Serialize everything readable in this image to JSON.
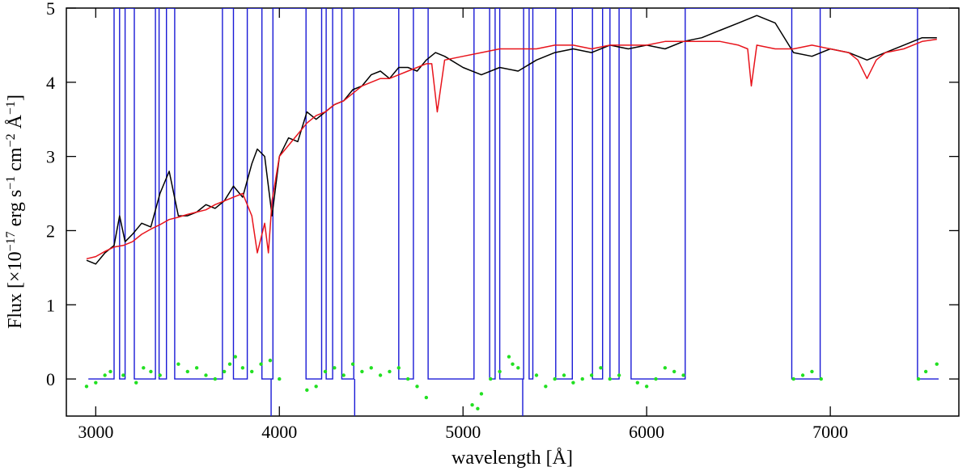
{
  "chart_data": {
    "type": "line",
    "title": "",
    "xlabel": "wavelength [Å]",
    "ylabel": {
      "prefix": "Flux [×10",
      "exp1": "−17",
      "mid1": " erg s",
      "exp2": "−1",
      "mid2": " cm",
      "exp3": "−2",
      "mid3": " Å",
      "exp4": "−1",
      "suffix": "]"
    },
    "xlim": [
      2840,
      7700
    ],
    "ylim": [
      -0.5,
      5
    ],
    "xticks": [
      3000,
      4000,
      5000,
      6000,
      7000
    ],
    "yticks": [
      0,
      1,
      2,
      3,
      4,
      5
    ],
    "grid": false,
    "legend": "none",
    "colors": {
      "observed": "#000000",
      "model": "#e8141c",
      "mask": "#1a1ad6",
      "residuals": "#22e022"
    },
    "series": [
      {
        "key": "observed",
        "x": [
          2950,
          3000,
          3050,
          3100,
          3130,
          3160,
          3200,
          3250,
          3300,
          3350,
          3400,
          3450,
          3500,
          3550,
          3600,
          3650,
          3700,
          3750,
          3800,
          3850,
          3880,
          3920,
          3960,
          4000,
          4050,
          4100,
          4150,
          4200,
          4250,
          4300,
          4350,
          4400,
          4450,
          4500,
          4550,
          4600,
          4650,
          4700,
          4750,
          4800,
          4850,
          4900,
          5000,
          5100,
          5200,
          5300,
          5400,
          5500,
          5600,
          5700,
          5800,
          5900,
          6000,
          6100,
          6200,
          6300,
          6400,
          6500,
          6600,
          6700,
          6800,
          6900,
          7000,
          7100,
          7200,
          7300,
          7400,
          7500,
          7580
        ],
        "y": [
          1.6,
          1.55,
          1.7,
          1.8,
          2.2,
          1.85,
          1.95,
          2.1,
          2.05,
          2.5,
          2.8,
          2.2,
          2.2,
          2.25,
          2.35,
          2.3,
          2.4,
          2.6,
          2.45,
          2.9,
          3.1,
          3.0,
          2.2,
          3.0,
          3.25,
          3.2,
          3.6,
          3.5,
          3.6,
          3.7,
          3.75,
          3.9,
          3.95,
          4.1,
          4.15,
          4.05,
          4.2,
          4.2,
          4.15,
          4.3,
          4.4,
          4.35,
          4.2,
          4.1,
          4.2,
          4.15,
          4.3,
          4.4,
          4.45,
          4.4,
          4.5,
          4.45,
          4.5,
          4.45,
          4.55,
          4.6,
          4.7,
          4.8,
          4.9,
          4.8,
          4.4,
          4.35,
          4.45,
          4.4,
          4.3,
          4.4,
          4.5,
          4.6,
          4.6
        ]
      },
      {
        "key": "model",
        "x": [
          2950,
          3000,
          3050,
          3100,
          3150,
          3200,
          3250,
          3300,
          3350,
          3400,
          3450,
          3500,
          3550,
          3600,
          3650,
          3700,
          3750,
          3800,
          3850,
          3880,
          3920,
          3940,
          3960,
          4000,
          4050,
          4100,
          4150,
          4200,
          4250,
          4300,
          4350,
          4400,
          4450,
          4500,
          4550,
          4600,
          4650,
          4700,
          4750,
          4800,
          4830,
          4860,
          4900,
          5000,
          5100,
          5200,
          5300,
          5400,
          5500,
          5600,
          5700,
          5800,
          5900,
          6000,
          6100,
          6200,
          6300,
          6400,
          6500,
          6550,
          6570,
          6600,
          6700,
          6800,
          6900,
          7000,
          7100,
          7150,
          7200,
          7250,
          7300,
          7400,
          7500,
          7580
        ],
        "y": [
          1.62,
          1.65,
          1.72,
          1.78,
          1.8,
          1.85,
          1.95,
          2.02,
          2.08,
          2.15,
          2.18,
          2.22,
          2.25,
          2.28,
          2.35,
          2.4,
          2.45,
          2.5,
          2.2,
          1.7,
          2.1,
          1.7,
          2.4,
          3.0,
          3.15,
          3.3,
          3.45,
          3.55,
          3.6,
          3.7,
          3.75,
          3.85,
          3.95,
          4.0,
          4.05,
          4.05,
          4.1,
          4.15,
          4.2,
          4.25,
          4.25,
          3.6,
          4.3,
          4.35,
          4.4,
          4.45,
          4.45,
          4.45,
          4.5,
          4.5,
          4.45,
          4.5,
          4.5,
          4.5,
          4.55,
          4.55,
          4.55,
          4.55,
          4.5,
          4.45,
          3.95,
          4.5,
          4.45,
          4.45,
          4.5,
          4.45,
          4.4,
          4.3,
          4.05,
          4.3,
          4.4,
          4.45,
          4.55,
          4.58
        ]
      }
    ],
    "mask": {
      "key": "mask",
      "intervals": [
        [
          3100,
          3130
        ],
        [
          3160,
          3210
        ],
        [
          3325,
          3345
        ],
        [
          3385,
          3430
        ],
        [
          3690,
          3750
        ],
        [
          3825,
          3905
        ],
        [
          3965,
          4145
        ],
        [
          4230,
          4255
        ],
        [
          4290,
          4340
        ],
        [
          4405,
          4650
        ],
        [
          4730,
          4810
        ],
        [
          5060,
          5145
        ],
        [
          5175,
          5200
        ],
        [
          5330,
          5360
        ],
        [
          5380,
          5505
        ],
        [
          5595,
          5705
        ],
        [
          5760,
          5800
        ],
        [
          5850,
          5915
        ],
        [
          6210,
          6790
        ],
        [
          6945,
          7475
        ]
      ],
      "spikes": [
        [
          3955,
          -0.5
        ],
        [
          4410,
          -0.5
        ],
        [
          5325,
          -0.5
        ]
      ]
    },
    "residuals": {
      "key": "residuals",
      "x": [
        2950,
        3000,
        3050,
        3080,
        3150,
        3220,
        3260,
        3300,
        3350,
        3450,
        3500,
        3550,
        3600,
        3650,
        3700,
        3730,
        3760,
        3800,
        3850,
        3900,
        3950,
        4000,
        4150,
        4200,
        4250,
        4300,
        4350,
        4400,
        4450,
        4500,
        4550,
        4600,
        4650,
        4700,
        4750,
        4800,
        5050,
        5080,
        5100,
        5150,
        5200,
        5250,
        5270,
        5300,
        5400,
        5450,
        5500,
        5550,
        5600,
        5650,
        5700,
        5750,
        5800,
        5850,
        5950,
        6000,
        6050,
        6100,
        6150,
        6200,
        6800,
        6850,
        6900,
        6950,
        7480,
        7520,
        7580
      ],
      "y": [
        -0.1,
        -0.05,
        0.05,
        0.1,
        0.05,
        -0.05,
        0.15,
        0.1,
        0.05,
        0.2,
        0.1,
        0.15,
        0.05,
        0.0,
        0.1,
        0.2,
        0.3,
        0.15,
        0.1,
        0.2,
        0.25,
        0.0,
        -0.15,
        -0.1,
        0.1,
        0.15,
        0.05,
        0.2,
        0.1,
        0.15,
        0.05,
        0.1,
        0.15,
        0.0,
        -0.1,
        -0.25,
        -0.35,
        -0.4,
        -0.2,
        0.0,
        0.1,
        0.3,
        0.2,
        0.15,
        0.05,
        -0.1,
        0.0,
        0.05,
        -0.05,
        0.0,
        0.05,
        0.15,
        0.0,
        0.05,
        -0.05,
        -0.1,
        0.0,
        0.15,
        0.1,
        0.05,
        0.0,
        0.05,
        0.1,
        0.0,
        0.0,
        0.1,
        0.2
      ]
    }
  }
}
